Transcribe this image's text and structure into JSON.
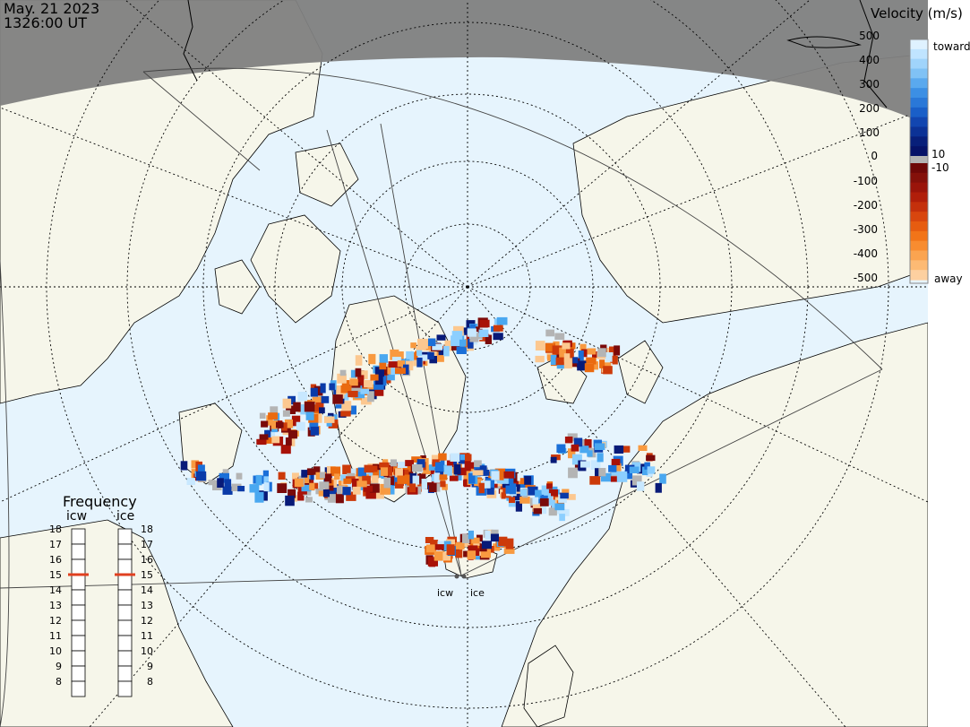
{
  "header": {
    "date": "May. 21 2023",
    "time": "1326:00 UT"
  },
  "colorbar": {
    "title": "Velocity (m/s)",
    "top_label": "toward",
    "bottom_label": "away",
    "ticks": [
      "500",
      "400",
      "300",
      "200",
      "100",
      "10",
      "0",
      "-10",
      "-100",
      "-200",
      "-300",
      "-400",
      "-500"
    ],
    "toward_colors": [
      "#c8e8ff",
      "#8ccfff",
      "#4aa8f0",
      "#1a6fd8",
      "#0a3aa8",
      "#081a78"
    ],
    "away_colors": [
      "#7a0a0a",
      "#a81208",
      "#cc3a0a",
      "#ea6a10",
      "#f89a40",
      "#fcc890"
    ]
  },
  "frequency": {
    "title": "Frequency",
    "radars": [
      "icw",
      "ice"
    ],
    "levels": [
      "18",
      "17",
      "16",
      "15",
      "14",
      "13",
      "12",
      "11",
      "10",
      "9",
      "8"
    ],
    "selected": [
      15,
      15
    ],
    "marker_color": "#e04020"
  },
  "map": {
    "radar_labels": [
      "icw",
      "ice"
    ],
    "colors": {
      "ocean": "#e6f4fd",
      "land": "#f6f6ea",
      "night": "#808080",
      "coast": "#000000",
      "grid": "#000000",
      "ground_scatter": "#b4b4b4"
    }
  }
}
